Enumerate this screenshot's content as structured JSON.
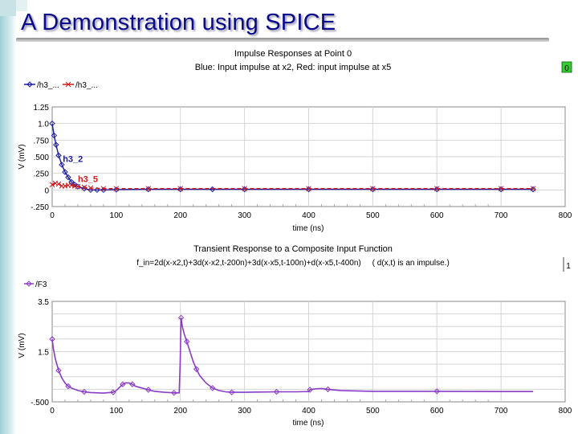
{
  "slide_title": "A Demonstration using SPICE",
  "chart_data": [
    {
      "type": "line",
      "title": "Impulse Responses at Point 0",
      "subtitle": "Blue: Input impulse at x2, Red: input impulse at x5",
      "xlabel": "time (ns)",
      "ylabel": "V (mV)",
      "xlim": [
        0,
        800
      ],
      "ylim": [
        -0.25,
        1.25
      ],
      "x_ticks": [
        "0",
        "100",
        "200",
        "300",
        "400",
        "500",
        "600",
        "700",
        "800"
      ],
      "y_ticks": [
        "-.250",
        "0",
        ".250",
        ".500",
        ".750",
        "1.0",
        "1.25"
      ],
      "grid": true,
      "legend": "top-left",
      "side_tag": "0",
      "series": [
        {
          "name": "/h3_...",
          "annotation": "h3_2",
          "color": "#1a1aa6",
          "marker": "diamond",
          "x": [
            0,
            3,
            6,
            10,
            15,
            20,
            25,
            30,
            35,
            40,
            50,
            60,
            70,
            80,
            100,
            150,
            200,
            250,
            300,
            400,
            500,
            600,
            700,
            750
          ],
          "y": [
            1.0,
            0.82,
            0.68,
            0.52,
            0.38,
            0.27,
            0.19,
            0.12,
            0.08,
            0.05,
            0.02,
            0.0,
            0.0,
            0.0,
            0.005,
            0.01,
            0.01,
            0.01,
            0.01,
            0.01,
            0.01,
            0.01,
            0.01,
            0.01
          ]
        },
        {
          "name": "/h3_...",
          "annotation": "h3_5",
          "color": "#d01c1c",
          "marker": "x",
          "x": [
            0,
            5,
            10,
            15,
            20,
            25,
            30,
            35,
            40,
            50,
            60,
            80,
            100,
            150,
            200,
            300,
            400,
            500,
            600,
            700,
            750
          ],
          "y": [
            0.08,
            0.1,
            0.09,
            0.06,
            0.06,
            0.07,
            0.07,
            0.06,
            0.05,
            0.04,
            0.03,
            0.02,
            0.02,
            0.02,
            0.02,
            0.02,
            0.02,
            0.02,
            0.02,
            0.02,
            0.02
          ]
        }
      ]
    },
    {
      "type": "line",
      "title": "Transient Response to a Composite Input Function",
      "subtitle": "f_in=2d(x-x2,t)+3d(x-x2,t-200n)+3d(x-x5,t-100n)+d(x-x5,t-400n)     ( d(x,t) is an impulse.)",
      "xlabel": "time (ns)",
      "ylabel": "V (mV)",
      "xlim": [
        0,
        800
      ],
      "ylim": [
        -0.5,
        3.5
      ],
      "x_ticks": [
        "0",
        "100",
        "200",
        "300",
        "400",
        "500",
        "600",
        "700",
        "800"
      ],
      "y_ticks": [
        "-.500",
        "1.5",
        "3.5"
      ],
      "grid": true,
      "legend": "top-left",
      "side_tag": "1",
      "series": [
        {
          "name": "/F3",
          "color": "#8a3cc8",
          "marker": "diamond",
          "x": [
            0,
            2,
            5,
            10,
            15,
            20,
            25,
            30,
            40,
            50,
            60,
            80,
            95,
            100,
            105,
            110,
            115,
            120,
            125,
            130,
            140,
            150,
            160,
            175,
            190,
            198,
            199.5,
            201,
            203,
            206,
            210,
            215,
            220,
            225,
            230,
            240,
            250,
            260,
            270,
            280,
            300,
            320,
            350,
            380,
            400,
            402,
            410,
            420,
            430,
            450,
            500,
            600,
            700,
            750
          ],
          "y": [
            2.0,
            1.6,
            1.2,
            0.75,
            0.45,
            0.25,
            0.12,
            0.05,
            -0.05,
            -0.1,
            -0.13,
            -0.15,
            -0.12,
            -0.05,
            0.08,
            0.2,
            0.26,
            0.25,
            0.2,
            0.12,
            0.05,
            -0.02,
            -0.08,
            -0.12,
            -0.14,
            -0.14,
            1.0,
            2.85,
            2.5,
            2.2,
            1.9,
            1.5,
            1.1,
            0.8,
            0.55,
            0.25,
            0.05,
            -0.05,
            -0.1,
            -0.12,
            -0.12,
            -0.11,
            -0.1,
            -0.1,
            -0.09,
            -0.02,
            0.02,
            0.03,
            0.0,
            -0.05,
            -0.08,
            -0.08,
            -0.09,
            -0.09
          ]
        }
      ]
    }
  ]
}
